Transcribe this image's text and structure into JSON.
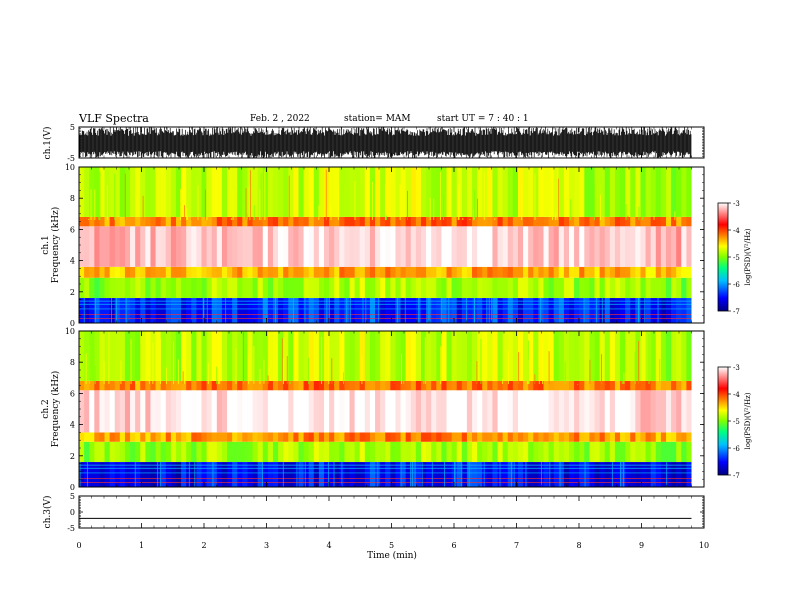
{
  "header": {
    "title": "VLF Spectra",
    "date": "Feb. 2  , 2022",
    "station": "station= MAM",
    "start": "start  UT  =   7 : 40 : 1"
  },
  "chart_data": [
    {
      "type": "line",
      "panel": "ch1-waveform",
      "ylabel": "ch.1(V)",
      "ylim": [
        -5,
        5
      ],
      "yticks": [
        5,
        -5
      ],
      "xlim": [
        0,
        10
      ],
      "description_values": "dense broadband waveform spanning approx -5..5 V over 0–9.8 min"
    },
    {
      "type": "heatmap",
      "panel": "ch1-spectrogram",
      "ylabel": "ch.1 Frequency (kHz)",
      "ylim": [
        0,
        10
      ],
      "yticks": [
        0,
        2,
        4,
        6,
        8,
        10
      ],
      "xlim": [
        0,
        10
      ],
      "data_extent_min": 9.8,
      "colorbar": {
        "label": "log(PSD)(V²/Hz)",
        "range": [
          -7,
          -3
        ],
        "ticks": [
          -3,
          -4,
          -5,
          -6,
          -7
        ]
      },
      "bands_khz_log_psd": [
        {
          "f": [
            0,
            1.6
          ],
          "level": -6.6
        },
        {
          "f": [
            1.6,
            2.9
          ],
          "level": -5.2
        },
        {
          "f": [
            2.9,
            3.6
          ],
          "level": -4.6
        },
        {
          "f": [
            3.6,
            6.2
          ],
          "level": -3.3
        },
        {
          "f": [
            6.2,
            6.8
          ],
          "level": -4.4
        },
        {
          "f": [
            6.8,
            10
          ],
          "level": -5.1
        }
      ]
    },
    {
      "type": "heatmap",
      "panel": "ch2-spectrogram",
      "ylabel": "ch.2 Frequency (kHz)",
      "ylim": [
        0,
        10
      ],
      "yticks": [
        0,
        2,
        4,
        6,
        8,
        10
      ],
      "xlim": [
        0,
        10
      ],
      "data_extent_min": 9.8,
      "colorbar": {
        "label": "log(PSD)(V²/Hz)",
        "range": [
          -7,
          -3
        ],
        "ticks": [
          -3,
          -4,
          -5,
          -6,
          -7
        ]
      },
      "bands_khz_log_psd": [
        {
          "f": [
            0,
            1.6
          ],
          "level": -6.7
        },
        {
          "f": [
            1.6,
            2.9
          ],
          "level": -5.2
        },
        {
          "f": [
            2.9,
            3.5
          ],
          "level": -4.5
        },
        {
          "f": [
            3.5,
            6.2
          ],
          "level": -3.2
        },
        {
          "f": [
            6.2,
            6.8
          ],
          "level": -4.4
        },
        {
          "f": [
            6.8,
            10
          ],
          "level": -5.1
        }
      ]
    },
    {
      "type": "line",
      "panel": "ch3-waveform",
      "ylabel": "ch.3(V)",
      "ylim": [
        -5,
        5
      ],
      "yticks": [
        5,
        0,
        -5
      ],
      "xlim": [
        0,
        10
      ],
      "x": [
        0,
        9.8
      ],
      "y": [
        -2,
        -2
      ]
    }
  ],
  "xaxis": {
    "label": "Time  (min)",
    "ticks": [
      "0",
      "1",
      "2",
      "3",
      "4",
      "5",
      "6",
      "7",
      "8",
      "9",
      "10"
    ]
  },
  "colors": {
    "axis": "#000000",
    "colormap": [
      "#00007f",
      "#0000ff",
      "#00bfff",
      "#00ff7f",
      "#7fff00",
      "#ffff00",
      "#ff7f00",
      "#ff0000",
      "#ff9999",
      "#ffffff"
    ]
  }
}
